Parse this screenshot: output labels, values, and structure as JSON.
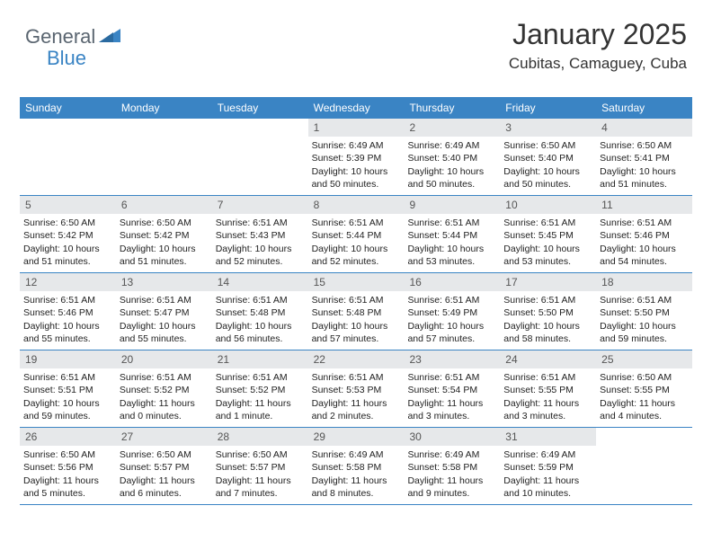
{
  "brand": {
    "part1": "General",
    "part2": "Blue"
  },
  "title": "January 2025",
  "location": "Cubitas, Camaguey, Cuba",
  "colors": {
    "header_bg": "#3a84c4",
    "header_text": "#ffffff",
    "daynum_bg": "#e6e8ea",
    "row_border": "#3a84c4",
    "brand_gray": "#5a6570",
    "brand_blue": "#3a84c4"
  },
  "daysOfWeek": [
    "Sunday",
    "Monday",
    "Tuesday",
    "Wednesday",
    "Thursday",
    "Friday",
    "Saturday"
  ],
  "weeks": [
    [
      {
        "empty": true
      },
      {
        "empty": true
      },
      {
        "empty": true
      },
      {
        "num": "1",
        "sunrise": "6:49 AM",
        "sunset": "5:39 PM",
        "daylight": "10 hours and 50 minutes."
      },
      {
        "num": "2",
        "sunrise": "6:49 AM",
        "sunset": "5:40 PM",
        "daylight": "10 hours and 50 minutes."
      },
      {
        "num": "3",
        "sunrise": "6:50 AM",
        "sunset": "5:40 PM",
        "daylight": "10 hours and 50 minutes."
      },
      {
        "num": "4",
        "sunrise": "6:50 AM",
        "sunset": "5:41 PM",
        "daylight": "10 hours and 51 minutes."
      }
    ],
    [
      {
        "num": "5",
        "sunrise": "6:50 AM",
        "sunset": "5:42 PM",
        "daylight": "10 hours and 51 minutes."
      },
      {
        "num": "6",
        "sunrise": "6:50 AM",
        "sunset": "5:42 PM",
        "daylight": "10 hours and 51 minutes."
      },
      {
        "num": "7",
        "sunrise": "6:51 AM",
        "sunset": "5:43 PM",
        "daylight": "10 hours and 52 minutes."
      },
      {
        "num": "8",
        "sunrise": "6:51 AM",
        "sunset": "5:44 PM",
        "daylight": "10 hours and 52 minutes."
      },
      {
        "num": "9",
        "sunrise": "6:51 AM",
        "sunset": "5:44 PM",
        "daylight": "10 hours and 53 minutes."
      },
      {
        "num": "10",
        "sunrise": "6:51 AM",
        "sunset": "5:45 PM",
        "daylight": "10 hours and 53 minutes."
      },
      {
        "num": "11",
        "sunrise": "6:51 AM",
        "sunset": "5:46 PM",
        "daylight": "10 hours and 54 minutes."
      }
    ],
    [
      {
        "num": "12",
        "sunrise": "6:51 AM",
        "sunset": "5:46 PM",
        "daylight": "10 hours and 55 minutes."
      },
      {
        "num": "13",
        "sunrise": "6:51 AM",
        "sunset": "5:47 PM",
        "daylight": "10 hours and 55 minutes."
      },
      {
        "num": "14",
        "sunrise": "6:51 AM",
        "sunset": "5:48 PM",
        "daylight": "10 hours and 56 minutes."
      },
      {
        "num": "15",
        "sunrise": "6:51 AM",
        "sunset": "5:48 PM",
        "daylight": "10 hours and 57 minutes."
      },
      {
        "num": "16",
        "sunrise": "6:51 AM",
        "sunset": "5:49 PM",
        "daylight": "10 hours and 57 minutes."
      },
      {
        "num": "17",
        "sunrise": "6:51 AM",
        "sunset": "5:50 PM",
        "daylight": "10 hours and 58 minutes."
      },
      {
        "num": "18",
        "sunrise": "6:51 AM",
        "sunset": "5:50 PM",
        "daylight": "10 hours and 59 minutes."
      }
    ],
    [
      {
        "num": "19",
        "sunrise": "6:51 AM",
        "sunset": "5:51 PM",
        "daylight": "10 hours and 59 minutes."
      },
      {
        "num": "20",
        "sunrise": "6:51 AM",
        "sunset": "5:52 PM",
        "daylight": "11 hours and 0 minutes."
      },
      {
        "num": "21",
        "sunrise": "6:51 AM",
        "sunset": "5:52 PM",
        "daylight": "11 hours and 1 minute."
      },
      {
        "num": "22",
        "sunrise": "6:51 AM",
        "sunset": "5:53 PM",
        "daylight": "11 hours and 2 minutes."
      },
      {
        "num": "23",
        "sunrise": "6:51 AM",
        "sunset": "5:54 PM",
        "daylight": "11 hours and 3 minutes."
      },
      {
        "num": "24",
        "sunrise": "6:51 AM",
        "sunset": "5:55 PM",
        "daylight": "11 hours and 3 minutes."
      },
      {
        "num": "25",
        "sunrise": "6:50 AM",
        "sunset": "5:55 PM",
        "daylight": "11 hours and 4 minutes."
      }
    ],
    [
      {
        "num": "26",
        "sunrise": "6:50 AM",
        "sunset": "5:56 PM",
        "daylight": "11 hours and 5 minutes."
      },
      {
        "num": "27",
        "sunrise": "6:50 AM",
        "sunset": "5:57 PM",
        "daylight": "11 hours and 6 minutes."
      },
      {
        "num": "28",
        "sunrise": "6:50 AM",
        "sunset": "5:57 PM",
        "daylight": "11 hours and 7 minutes."
      },
      {
        "num": "29",
        "sunrise": "6:49 AM",
        "sunset": "5:58 PM",
        "daylight": "11 hours and 8 minutes."
      },
      {
        "num": "30",
        "sunrise": "6:49 AM",
        "sunset": "5:58 PM",
        "daylight": "11 hours and 9 minutes."
      },
      {
        "num": "31",
        "sunrise": "6:49 AM",
        "sunset": "5:59 PM",
        "daylight": "11 hours and 10 minutes."
      },
      {
        "empty": true
      }
    ]
  ],
  "labels": {
    "sunrise": "Sunrise:",
    "sunset": "Sunset:",
    "daylight": "Daylight:"
  }
}
